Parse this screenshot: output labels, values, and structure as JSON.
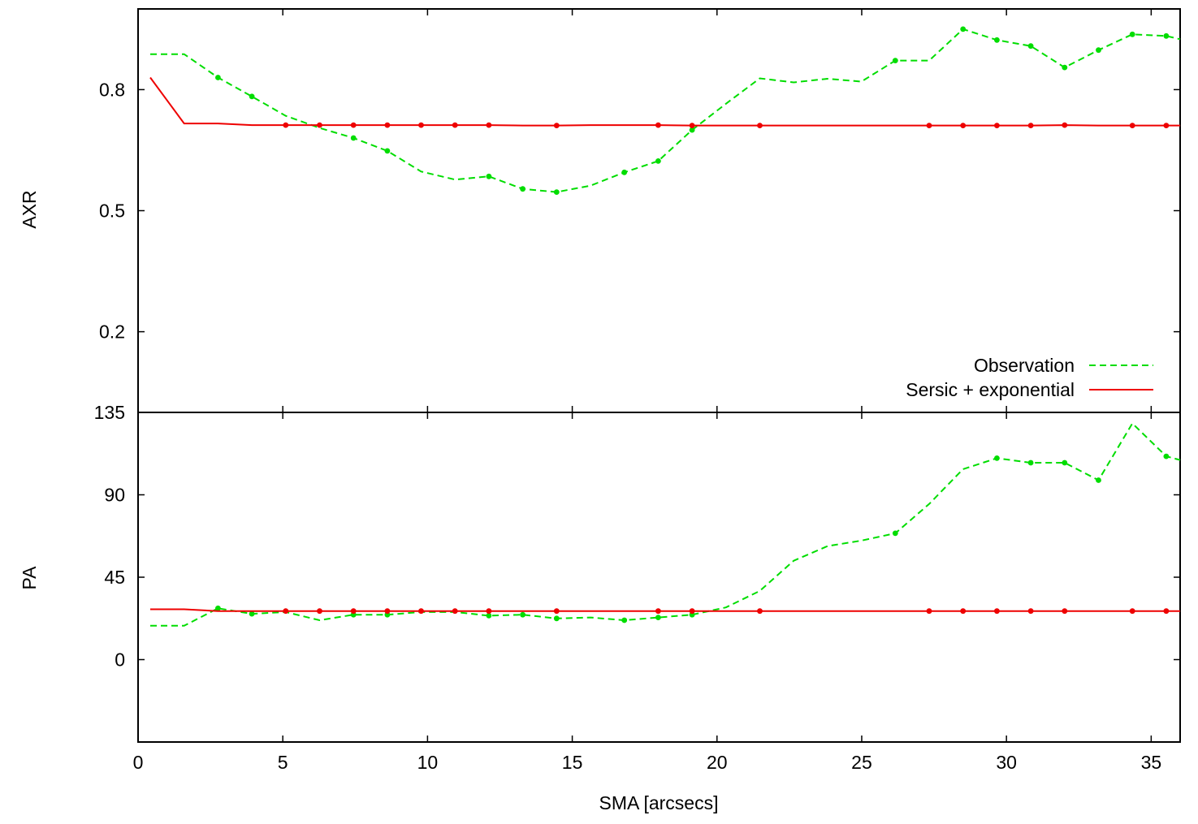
{
  "chart_data": [
    {
      "type": "line",
      "panel": "top",
      "xlabel": "",
      "ylabel": "AXR",
      "xlim": [
        0,
        36
      ],
      "ylim": [
        0,
        1
      ],
      "xticks": [
        0,
        5,
        10,
        15,
        20,
        25,
        30,
        35
      ],
      "yticks": [
        0.2,
        0.5,
        0.8
      ],
      "ytick_labels": [
        "0.2",
        "0.5",
        "0.8"
      ],
      "show_x_tick_labels": false,
      "legend": {
        "position": "bottom-right",
        "entries": [
          {
            "label": "Observation",
            "series": 0
          },
          {
            "label": "Sersic + exponential",
            "series": 1
          }
        ]
      },
      "series": [
        {
          "name": "Observation",
          "style": "dashed",
          "color": "#00dd00",
          "marker_x": [
            2.76,
            3.93,
            7.44,
            8.61,
            12.12,
            13.29,
            14.46,
            16.8,
            17.97,
            19.14,
            26.16,
            28.5,
            29.67,
            30.84,
            32.01,
            33.18,
            34.35,
            35.52
          ],
          "x": [
            0.42,
            1.59,
            2.76,
            3.93,
            5.1,
            6.27,
            7.44,
            8.61,
            9.78,
            10.95,
            12.12,
            13.29,
            14.46,
            15.63,
            16.8,
            17.97,
            19.14,
            20.31,
            21.48,
            22.65,
            23.82,
            24.99,
            26.16,
            27.33,
            28.5,
            29.67,
            30.84,
            32.01,
            33.18,
            34.35,
            35.52,
            36.0
          ],
          "y": [
            0.888,
            0.888,
            0.83,
            0.783,
            0.735,
            0.705,
            0.68,
            0.648,
            0.597,
            0.577,
            0.585,
            0.554,
            0.546,
            0.562,
            0.595,
            0.623,
            0.7,
            0.765,
            0.828,
            0.818,
            0.827,
            0.82,
            0.872,
            0.872,
            0.95,
            0.923,
            0.908,
            0.855,
            0.898,
            0.937,
            0.933,
            0.925
          ]
        },
        {
          "name": "Sersic + exponential",
          "style": "solid",
          "color": "#ee0000",
          "marker_x": [
            5.1,
            6.27,
            7.44,
            8.61,
            9.78,
            10.95,
            12.12,
            14.46,
            17.97,
            19.14,
            21.48,
            27.33,
            28.5,
            29.67,
            30.84,
            32.01,
            34.35,
            35.52
          ],
          "x": [
            0.42,
            1.59,
            2.76,
            3.93,
            5.1,
            6.27,
            7.44,
            8.61,
            9.78,
            10.95,
            12.12,
            13.29,
            14.46,
            15.63,
            16.8,
            17.97,
            19.14,
            20.31,
            21.48,
            22.65,
            23.82,
            24.99,
            26.16,
            27.33,
            28.5,
            29.67,
            30.84,
            32.01,
            33.18,
            34.35,
            35.52,
            36.0
          ],
          "y": [
            0.83,
            0.716,
            0.716,
            0.712,
            0.712,
            0.712,
            0.712,
            0.712,
            0.712,
            0.712,
            0.712,
            0.711,
            0.711,
            0.712,
            0.712,
            0.712,
            0.711,
            0.711,
            0.711,
            0.711,
            0.711,
            0.711,
            0.711,
            0.711,
            0.711,
            0.711,
            0.711,
            0.712,
            0.711,
            0.711,
            0.711,
            0.711
          ]
        }
      ]
    },
    {
      "type": "line",
      "panel": "bottom",
      "xlabel": "SMA [arcsecs]",
      "ylabel": "PA",
      "xlim": [
        0,
        36
      ],
      "ylim": [
        -45,
        135
      ],
      "xticks": [
        0,
        5,
        10,
        15,
        20,
        25,
        30,
        35
      ],
      "xtick_labels": [
        "0",
        "5",
        "10",
        "15",
        "20",
        "25",
        "30",
        "35"
      ],
      "yticks": [
        0,
        45,
        90,
        135
      ],
      "ytick_labels": [
        "0",
        "45",
        "90",
        "135"
      ],
      "series": [
        {
          "name": "Observation",
          "style": "dashed",
          "color": "#00dd00",
          "marker_x": [
            2.76,
            3.93,
            7.44,
            8.61,
            12.12,
            13.29,
            14.46,
            16.8,
            17.97,
            19.14,
            26.16,
            29.67,
            30.84,
            32.01,
            33.18,
            35.52
          ],
          "x": [
            0.42,
            1.59,
            2.76,
            3.93,
            5.1,
            6.27,
            7.44,
            8.61,
            9.78,
            10.95,
            12.12,
            13.29,
            14.46,
            15.63,
            16.8,
            17.97,
            19.14,
            20.31,
            21.48,
            22.65,
            23.82,
            24.99,
            26.16,
            27.33,
            28.5,
            29.67,
            30.84,
            32.01,
            33.18,
            34.35,
            35.52,
            36.0
          ],
          "y": [
            18.5,
            18.5,
            28,
            25,
            26,
            21.5,
            24.5,
            24.5,
            26,
            26,
            24,
            24.5,
            22.5,
            23,
            21.5,
            23,
            24.5,
            28.5,
            37.5,
            54,
            62,
            65,
            69,
            85,
            104,
            110,
            107.5,
            107.5,
            98,
            129,
            111,
            109
          ]
        },
        {
          "name": "Sersic + exponential",
          "style": "solid",
          "color": "#ee0000",
          "marker_x": [
            5.1,
            6.27,
            7.44,
            8.61,
            9.78,
            10.95,
            12.12,
            14.46,
            17.97,
            19.14,
            21.48,
            27.33,
            28.5,
            29.67,
            30.84,
            32.01,
            34.35,
            35.52
          ],
          "x": [
            0.42,
            1.59,
            2.76,
            3.93,
            5.1,
            6.27,
            7.44,
            8.61,
            9.78,
            10.95,
            12.12,
            13.29,
            14.46,
            15.63,
            16.8,
            17.97,
            19.14,
            20.31,
            21.48,
            22.65,
            23.82,
            24.99,
            26.16,
            27.33,
            28.5,
            29.67,
            30.84,
            32.01,
            33.18,
            34.35,
            35.52,
            36.0
          ],
          "y": [
            27.5,
            27.5,
            26.5,
            26.5,
            26.5,
            26.5,
            26.5,
            26.5,
            26.5,
            26.5,
            26.5,
            26.5,
            26.5,
            26.5,
            26.5,
            26.5,
            26.5,
            26.5,
            26.5,
            26.5,
            26.5,
            26.5,
            26.5,
            26.5,
            26.5,
            26.5,
            26.5,
            26.5,
            26.5,
            26.5,
            26.5,
            26.5
          ]
        }
      ]
    }
  ]
}
